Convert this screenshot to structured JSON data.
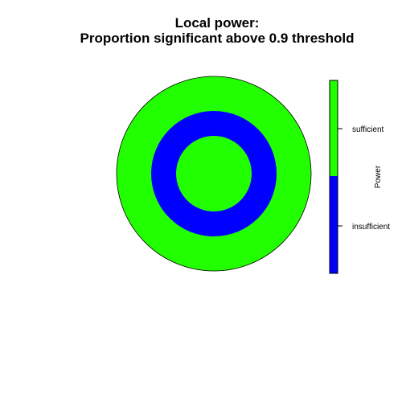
{
  "chart_data": {
    "type": "heatmap",
    "title_lines": [
      "Local power:",
      "Proportion significant above 0.9 threshold"
    ],
    "legend": {
      "title": "Power",
      "position": "right",
      "categories": [
        {
          "label": "sufficient",
          "color": "#22FF00"
        },
        {
          "label": "insufficient",
          "color": "#0000FF"
        }
      ]
    },
    "regions": [
      {
        "region": "outer ring",
        "category": "sufficient"
      },
      {
        "region": "middle ring",
        "category": "insufficient"
      },
      {
        "region": "center disk",
        "category": "sufficient"
      }
    ]
  }
}
